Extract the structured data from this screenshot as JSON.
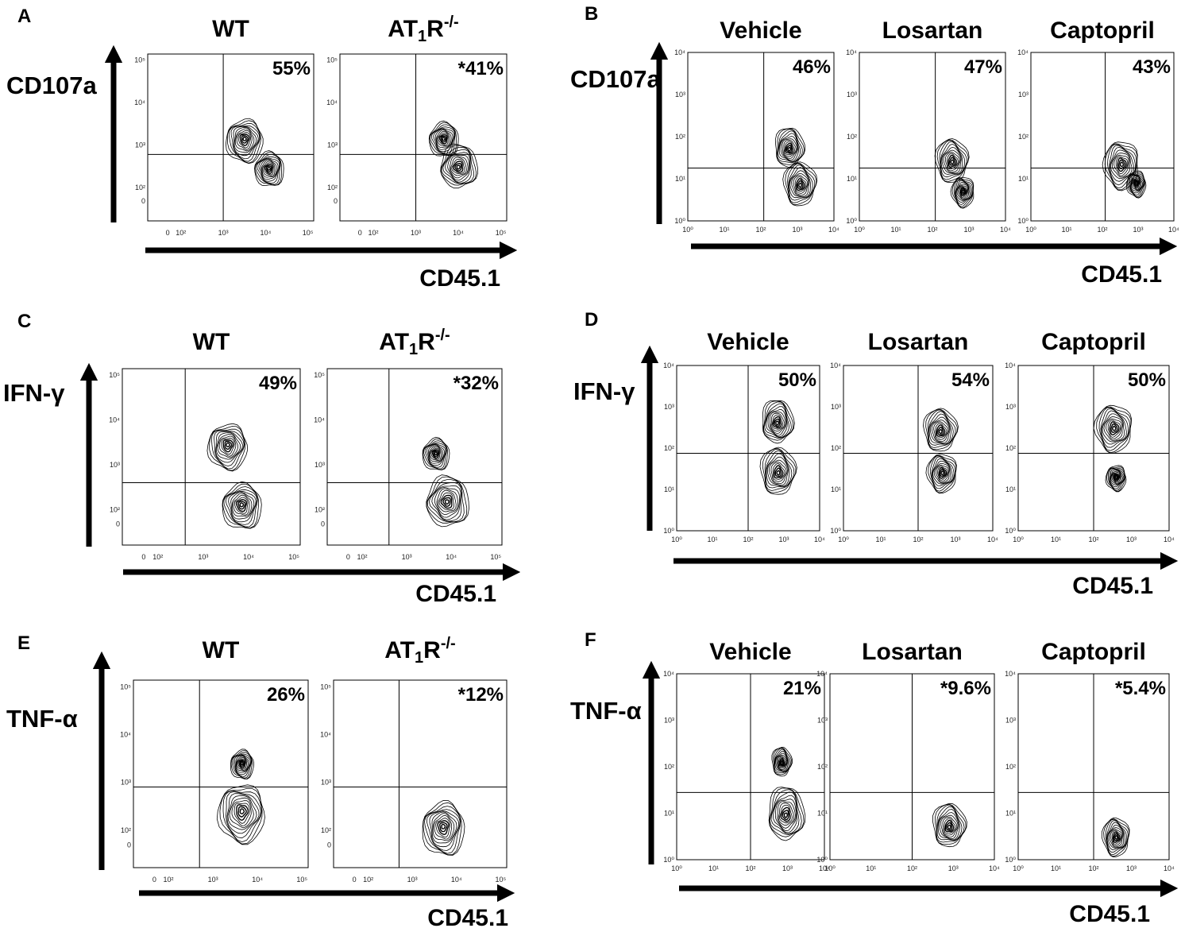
{
  "figure": {
    "panels": [
      {
        "letter": "A",
        "ylabel": "CD107a",
        "xlabel": "CD45.1",
        "scale": "biexp",
        "plots": [
          {
            "condition": "WT",
            "condition_sub": "",
            "condition_sup": "",
            "percent": "55%",
            "gate": {
              "x": 1000,
              "y": 600
            },
            "populations": [
              {
                "x": 3200,
                "y": 1400,
                "s": 1.0
              },
              {
                "x": 12000,
                "y": 280,
                "s": 0.8
              }
            ]
          },
          {
            "condition": "AT",
            "condition_sub": "1",
            "condition_suffix": "R",
            "condition_sup": "-/-",
            "percent": "*41%",
            "gate": {
              "x": 1000,
              "y": 600
            },
            "populations": [
              {
                "x": 4500,
                "y": 1400,
                "s": 0.8
              },
              {
                "x": 10000,
                "y": 300,
                "s": 1.0
              }
            ]
          }
        ]
      },
      {
        "letter": "B",
        "ylabel": "CD107a",
        "xlabel": "CD45.1",
        "scale": "log",
        "plots": [
          {
            "condition": "Vehicle",
            "percent": "46%",
            "gate": {
              "x": 120,
              "y": 18
            },
            "populations": [
              {
                "x": 600,
                "y": 50,
                "s": 0.9
              },
              {
                "x": 1200,
                "y": 7,
                "s": 1.0
              }
            ]
          },
          {
            "condition": "Losartan",
            "percent": "47%",
            "gate": {
              "x": 120,
              "y": 18
            },
            "populations": [
              {
                "x": 350,
                "y": 25,
                "s": 1.0
              },
              {
                "x": 700,
                "y": 5,
                "s": 0.7
              }
            ]
          },
          {
            "condition": "Captopril",
            "percent": "43%",
            "gate": {
              "x": 120,
              "y": 18
            },
            "populations": [
              {
                "x": 350,
                "y": 22,
                "s": 1.1
              },
              {
                "x": 900,
                "y": 8,
                "s": 0.6
              }
            ]
          }
        ]
      },
      {
        "letter": "C",
        "ylabel": "IFN-γ",
        "xlabel": "CD45.1",
        "scale": "biexp",
        "plots": [
          {
            "condition": "WT",
            "condition_sub": "",
            "condition_sup": "",
            "percent": "49%",
            "gate": {
              "x": 400,
              "y": 400
            },
            "populations": [
              {
                "x": 3500,
                "y": 2800,
                "s": 1.0
              },
              {
                "x": 7000,
                "y": 130,
                "s": 1.0
              }
            ]
          },
          {
            "condition": "AT",
            "condition_sub": "1",
            "condition_suffix": "R",
            "condition_sup": "-/-",
            "percent": "*32%",
            "gate": {
              "x": 400,
              "y": 400
            },
            "populations": [
              {
                "x": 4500,
                "y": 1800,
                "s": 0.7
              },
              {
                "x": 8000,
                "y": 150,
                "s": 1.1
              }
            ]
          }
        ]
      },
      {
        "letter": "D",
        "ylabel": "IFN-γ",
        "xlabel": "CD45.1",
        "scale": "log",
        "plots": [
          {
            "condition": "Vehicle",
            "percent": "50%",
            "gate": {
              "x": 100,
              "y": 75
            },
            "populations": [
              {
                "x": 650,
                "y": 400,
                "s": 1.0
              },
              {
                "x": 700,
                "y": 25,
                "s": 1.1
              }
            ]
          },
          {
            "condition": "Losartan",
            "percent": "54%",
            "gate": {
              "x": 100,
              "y": 75
            },
            "populations": [
              {
                "x": 400,
                "y": 250,
                "s": 1.0
              },
              {
                "x": 450,
                "y": 25,
                "s": 0.9
              }
            ]
          },
          {
            "condition": "Captopril",
            "percent": "50%",
            "gate": {
              "x": 100,
              "y": 75
            },
            "populations": [
              {
                "x": 350,
                "y": 300,
                "s": 1.1
              },
              {
                "x": 400,
                "y": 20,
                "s": 0.6
              }
            ]
          }
        ]
      },
      {
        "letter": "E",
        "ylabel": "TNF-α",
        "xlabel": "CD45.1",
        "scale": "biexp",
        "plots": [
          {
            "condition": "WT",
            "condition_sub": "",
            "condition_sup": "",
            "percent": "26%",
            "gate": {
              "x": 500,
              "y": 800
            },
            "populations": [
              {
                "x": 4500,
                "y": 250,
                "s": 1.2
              },
              {
                "x": 4500,
                "y": 2500,
                "s": 0.6
              }
            ]
          },
          {
            "condition": "AT",
            "condition_sub": "1",
            "condition_suffix": "R",
            "condition_sup": "-/-",
            "percent": "*12%",
            "gate": {
              "x": 500,
              "y": 800
            },
            "populations": [
              {
                "x": 5000,
                "y": 120,
                "s": 1.1
              }
            ]
          }
        ]
      },
      {
        "letter": "F",
        "ylabel": "TNF-α",
        "xlabel": "CD45.1",
        "scale": "log",
        "plots": [
          {
            "condition": "Vehicle",
            "percent": "21%",
            "gate": {
              "x": 100,
              "y": 28
            },
            "populations": [
              {
                "x": 900,
                "y": 9,
                "s": 1.1
              },
              {
                "x": 700,
                "y": 120,
                "s": 0.6
              }
            ]
          },
          {
            "condition": "Losartan",
            "percent": "*9.6%",
            "gate": {
              "x": 100,
              "y": 28
            },
            "populations": [
              {
                "x": 800,
                "y": 5,
                "s": 0.9
              }
            ]
          },
          {
            "condition": "Captopril",
            "percent": "*5.4%",
            "gate": {
              "x": 100,
              "y": 28
            },
            "populations": [
              {
                "x": 400,
                "y": 3,
                "s": 0.8
              }
            ]
          }
        ]
      }
    ]
  },
  "chart_data": [
    {
      "type": "contour",
      "panel": "A",
      "ylabel": "CD107a",
      "xlabel": "CD45.1",
      "series": [
        {
          "name": "WT",
          "value": 55,
          "unit": "%"
        },
        {
          "name": "AT1R-/-",
          "value": 41,
          "unit": "%",
          "significant": true
        }
      ]
    },
    {
      "type": "contour",
      "panel": "B",
      "ylabel": "CD107a",
      "xlabel": "CD45.1",
      "x_scale": "log",
      "xlim": [
        1,
        10000
      ],
      "ylim": [
        1,
        10000
      ],
      "series": [
        {
          "name": "Vehicle",
          "value": 46,
          "unit": "%"
        },
        {
          "name": "Losartan",
          "value": 47,
          "unit": "%"
        },
        {
          "name": "Captopril",
          "value": 43,
          "unit": "%"
        }
      ]
    },
    {
      "type": "contour",
      "panel": "C",
      "ylabel": "IFN-γ",
      "xlabel": "CD45.1",
      "series": [
        {
          "name": "WT",
          "value": 49,
          "unit": "%"
        },
        {
          "name": "AT1R-/-",
          "value": 32,
          "unit": "%",
          "significant": true
        }
      ]
    },
    {
      "type": "contour",
      "panel": "D",
      "ylabel": "IFN-γ",
      "xlabel": "CD45.1",
      "x_scale": "log",
      "xlim": [
        1,
        10000
      ],
      "ylim": [
        1,
        10000
      ],
      "series": [
        {
          "name": "Vehicle",
          "value": 50,
          "unit": "%"
        },
        {
          "name": "Losartan",
          "value": 54,
          "unit": "%"
        },
        {
          "name": "Captopril",
          "value": 50,
          "unit": "%"
        }
      ]
    },
    {
      "type": "contour",
      "panel": "E",
      "ylabel": "TNF-α",
      "xlabel": "CD45.1",
      "series": [
        {
          "name": "WT",
          "value": 26,
          "unit": "%"
        },
        {
          "name": "AT1R-/-",
          "value": 12,
          "unit": "%",
          "significant": true
        }
      ]
    },
    {
      "type": "contour",
      "panel": "F",
      "ylabel": "TNF-α",
      "xlabel": "CD45.1",
      "x_scale": "log",
      "xlim": [
        1,
        10000
      ],
      "ylim": [
        1,
        10000
      ],
      "series": [
        {
          "name": "Vehicle",
          "value": 21,
          "unit": "%"
        },
        {
          "name": "Losartan",
          "value": 9.6,
          "unit": "%",
          "significant": true
        },
        {
          "name": "Captopril",
          "value": 5.4,
          "unit": "%",
          "significant": true
        }
      ]
    }
  ]
}
